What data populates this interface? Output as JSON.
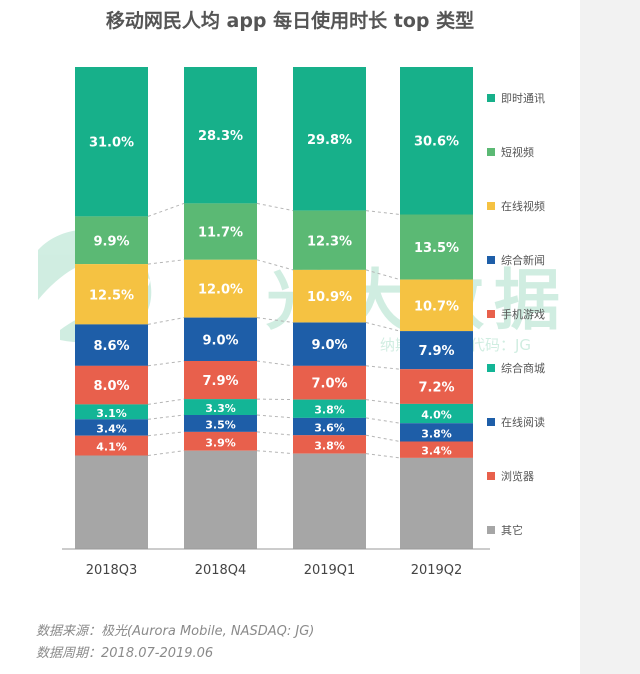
{
  "title": "移动网民人均 app 每日使用时长 top 类型",
  "chart_data": {
    "type": "bar",
    "stacked": true,
    "normalized": true,
    "categories": [
      "2018Q3",
      "2018Q4",
      "2019Q1",
      "2019Q2"
    ],
    "series": [
      {
        "name": "其它",
        "color": "#a6a6a6",
        "values": [
          null,
          null,
          null,
          null
        ]
      },
      {
        "name": "浏览器",
        "color": "#e8604c",
        "values": [
          4.1,
          3.9,
          3.8,
          3.4
        ]
      },
      {
        "name": "在线阅读",
        "color": "#1e5ea8",
        "values": [
          3.4,
          3.5,
          3.6,
          3.8
        ]
      },
      {
        "name": "综合商城",
        "color": "#13b596",
        "values": [
          3.1,
          3.3,
          3.8,
          4.0
        ]
      },
      {
        "name": "手机游戏",
        "color": "#e8604c",
        "values": [
          8.0,
          7.9,
          7.0,
          7.2
        ]
      },
      {
        "name": "综合新闻",
        "color": "#1e5ea8",
        "values": [
          8.6,
          9.0,
          9.0,
          7.9
        ]
      },
      {
        "name": "在线视频",
        "color": "#f5c242",
        "values": [
          12.5,
          12.0,
          10.9,
          10.7
        ]
      },
      {
        "name": "短视频",
        "color": "#5bb974",
        "values": [
          9.9,
          11.7,
          12.3,
          13.5
        ]
      },
      {
        "name": "即时通讯",
        "color": "#17b08a",
        "values": [
          31.0,
          28.3,
          29.8,
          30.6
        ]
      }
    ],
    "ylim": [
      0,
      100
    ],
    "legend_position": "right",
    "value_suffix": "%"
  },
  "watermark": {
    "brand": "极光大数据",
    "sub": "纳斯达克股票代码：JG"
  },
  "footer": {
    "source": "数据来源：极光(Aurora Mobile, NASDAQ: JG)",
    "period": "数据周期：2018.07-2019.06"
  }
}
